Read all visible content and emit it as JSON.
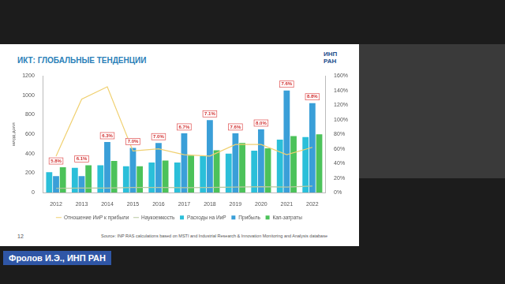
{
  "slide": {
    "title": "ИКТ: ГЛОБАЛЬНЫЕ ТЕНДЕНЦИИ",
    "logo": [
      "ИНП",
      "РАН"
    ],
    "page_number": 12,
    "source": "Source: INP RAS calculations based on MSTI and Industrial Research & Innovation Monitoring and Analysis database",
    "caption": "Фролов И.Э., ИНП РАН"
  },
  "chart_data": {
    "type": "bar",
    "y_label": "млрд долл",
    "categories": [
      "2012",
      "2013",
      "2014",
      "2015",
      "2016",
      "2017",
      "2018",
      "2019",
      "2020",
      "2021",
      "2022"
    ],
    "series": [
      {
        "name": "Расходы на ИиР",
        "type": "bar",
        "color": "#2bbfd9",
        "values": [
          210,
          255,
          280,
          270,
          310,
          310,
          375,
          400,
          430,
          545,
          570
        ]
      },
      {
        "name": "Прибыль",
        "type": "bar",
        "color": "#3a9fd8",
        "values": [
          170,
          170,
          520,
          460,
          510,
          610,
          745,
          610,
          650,
          1050,
          920
        ]
      },
      {
        "name": "Кап-затраты",
        "type": "bar",
        "color": "#4cc25a",
        "values": [
          260,
          280,
          325,
          270,
          330,
          380,
          435,
          510,
          455,
          580,
          600
        ]
      },
      {
        "name": "Отношение ИиР к прибыли",
        "type": "line",
        "axis": "y2",
        "color": "#f0d070",
        "values": [
          50,
          128,
          145,
          57,
          60,
          52,
          50,
          66,
          66,
          52,
          62
        ]
      },
      {
        "name": "Наукоемкость",
        "type": "line",
        "axis": "y2",
        "color": "#b9c9a0",
        "data_labels": true,
        "values": [
          5.8,
          6.1,
          6.3,
          7.0,
          7.0,
          6.7,
          7.1,
          7.6,
          8.0,
          7.6,
          8.8
        ],
        "value_labels": [
          "5.8%",
          "6.1%",
          "6.3%",
          "7.0%",
          "7.0%",
          "6.7%",
          "7.1%",
          "7.6%",
          "8.0%",
          "7.6%",
          "8.8%"
        ]
      }
    ],
    "ylim": [
      0,
      1200
    ],
    "yticks": [
      0,
      200,
      400,
      600,
      800,
      1000,
      1200
    ],
    "y2lim": [
      0,
      160
    ],
    "y2ticks": [
      {
        "value": 0,
        "label": "0%"
      },
      {
        "value": 20,
        "label": "20%"
      },
      {
        "value": 40,
        "label": "40%"
      },
      {
        "value": 60,
        "label": "60%"
      },
      {
        "value": 80,
        "label": "80%"
      },
      {
        "value": 100,
        "label": "100%"
      },
      {
        "value": 120,
        "label": "120%"
      },
      {
        "value": 140,
        "label": "140%"
      },
      {
        "value": 160,
        "label": "160%"
      }
    ],
    "grid": false,
    "legend": "bottom"
  }
}
